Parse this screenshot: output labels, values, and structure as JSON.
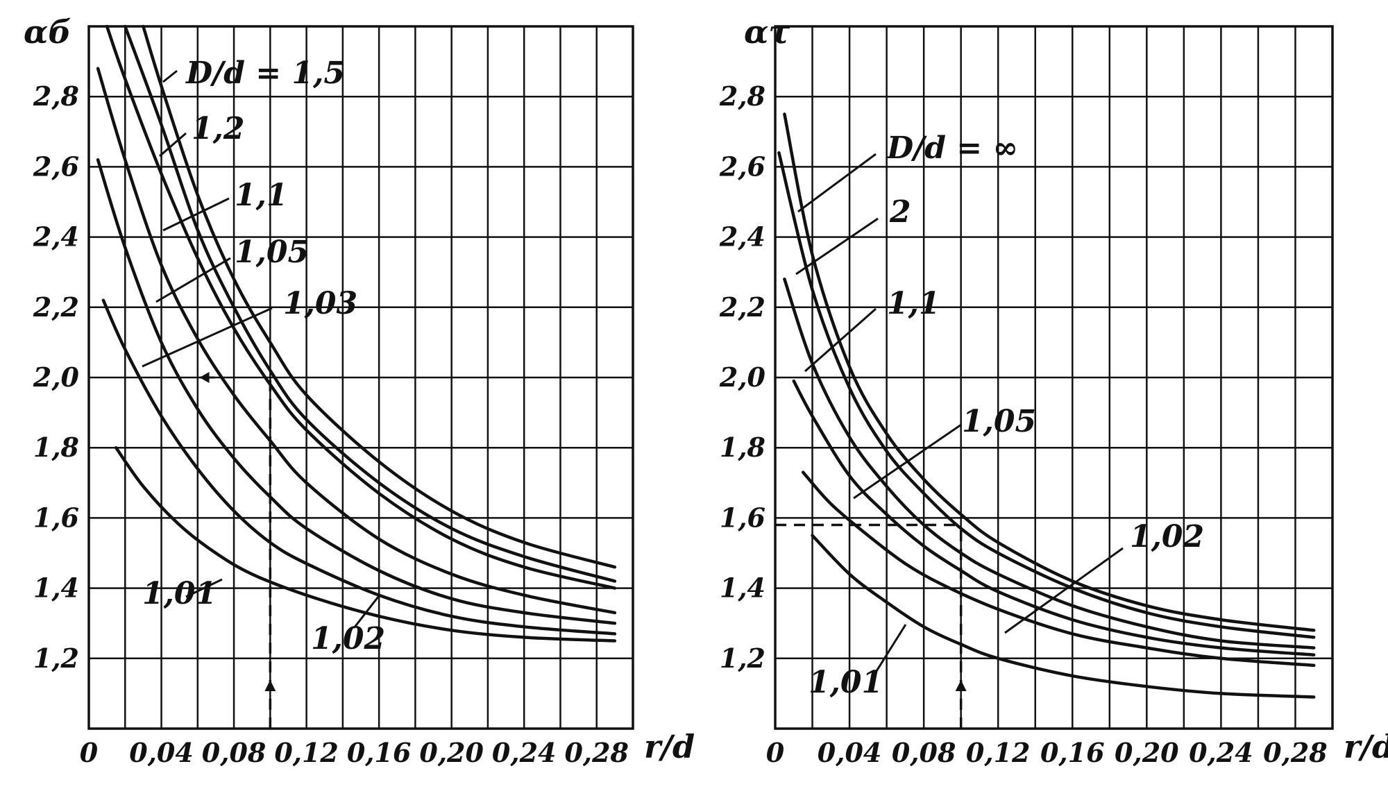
{
  "chart_data": [
    {
      "type": "line",
      "ylabel": "αб",
      "xlabel": "r/d",
      "xlim": [
        0,
        0.3
      ],
      "ylim": [
        1.0,
        3.0
      ],
      "x_ticks": [
        "0",
        "0,04",
        "0,08",
        "0,12",
        "0,16",
        "0,20",
        "0,24",
        "0,28"
      ],
      "y_ticks": [
        "1,2",
        "1,4",
        "1,6",
        "1,8",
        "2,0",
        "2,2",
        "2,4",
        "2,6",
        "2,8"
      ],
      "grid": true,
      "series": [
        {
          "name": "D/d = 1,5",
          "label": "D/d = 1,5",
          "x": [
            0.03,
            0.04,
            0.06,
            0.08,
            0.1,
            0.12,
            0.16,
            0.2,
            0.24,
            0.29
          ],
          "y": [
            3.0,
            2.83,
            2.52,
            2.28,
            2.1,
            1.95,
            1.76,
            1.62,
            1.53,
            1.46
          ]
        },
        {
          "name": "1,2",
          "label": "1,2",
          "x": [
            0.02,
            0.04,
            0.06,
            0.08,
            0.1,
            0.12,
            0.16,
            0.2,
            0.24,
            0.29
          ],
          "y": [
            3.0,
            2.72,
            2.42,
            2.2,
            2.02,
            1.88,
            1.7,
            1.57,
            1.49,
            1.42
          ]
        },
        {
          "name": "1,1",
          "label": "1,1",
          "x": [
            0.01,
            0.02,
            0.04,
            0.06,
            0.08,
            0.1,
            0.12,
            0.16,
            0.2,
            0.24,
            0.29
          ],
          "y": [
            3.0,
            2.85,
            2.58,
            2.34,
            2.14,
            1.98,
            1.85,
            1.67,
            1.54,
            1.46,
            1.4
          ]
        },
        {
          "name": "1,05",
          "label": "1,05",
          "x": [
            0.005,
            0.02,
            0.04,
            0.06,
            0.08,
            0.1,
            0.12,
            0.16,
            0.2,
            0.24,
            0.29
          ],
          "y": [
            2.88,
            2.62,
            2.32,
            2.11,
            1.95,
            1.82,
            1.7,
            1.54,
            1.44,
            1.38,
            1.33
          ]
        },
        {
          "name": "1,03",
          "label": "1,03",
          "x": [
            0.005,
            0.02,
            0.04,
            0.06,
            0.08,
            0.1,
            0.12,
            0.16,
            0.2,
            0.24,
            0.29
          ],
          "y": [
            2.62,
            2.37,
            2.1,
            1.91,
            1.77,
            1.66,
            1.57,
            1.45,
            1.37,
            1.33,
            1.3
          ]
        },
        {
          "name": "1,02",
          "label": "1,02",
          "x": [
            0.008,
            0.02,
            0.04,
            0.06,
            0.08,
            0.1,
            0.12,
            0.16,
            0.2,
            0.24,
            0.29
          ],
          "y": [
            2.22,
            2.08,
            1.89,
            1.74,
            1.62,
            1.53,
            1.47,
            1.38,
            1.32,
            1.29,
            1.27
          ]
        },
        {
          "name": "1,01",
          "label": "1,01",
          "x": [
            0.015,
            0.03,
            0.05,
            0.07,
            0.09,
            0.12,
            0.16,
            0.2,
            0.24,
            0.29
          ],
          "y": [
            1.8,
            1.69,
            1.58,
            1.5,
            1.44,
            1.38,
            1.32,
            1.28,
            1.26,
            1.25
          ]
        }
      ],
      "annotations": [
        {
          "type": "dashed-vertical",
          "x": 0.1,
          "y_from": 1.0,
          "y_to": 2.0
        },
        {
          "type": "arrow-left",
          "x": 0.04,
          "y": 2.0
        }
      ]
    },
    {
      "type": "line",
      "ylabel": "ατ",
      "xlabel": "r/d",
      "xlim": [
        0,
        0.3
      ],
      "ylim": [
        1.0,
        3.0
      ],
      "x_ticks": [
        "0",
        "0,04",
        "0,08",
        "0,12",
        "0,16",
        "0,20",
        "0,24",
        "0,28"
      ],
      "y_ticks": [
        "1,2",
        "1,4",
        "1,6",
        "1,8",
        "2,0",
        "2,2",
        "2,4",
        "2,6",
        "2,8"
      ],
      "grid": true,
      "series": [
        {
          "name": "D/d = ∞",
          "label": "D/d = ∞",
          "x": [
            0.005,
            0.02,
            0.04,
            0.06,
            0.08,
            0.1,
            0.12,
            0.16,
            0.2,
            0.24,
            0.29
          ],
          "y": [
            2.75,
            2.35,
            2.03,
            1.84,
            1.71,
            1.61,
            1.53,
            1.42,
            1.35,
            1.31,
            1.28
          ]
        },
        {
          "name": "2",
          "label": "2",
          "x": [
            0.002,
            0.02,
            0.04,
            0.06,
            0.08,
            0.1,
            0.12,
            0.16,
            0.2,
            0.24,
            0.29
          ],
          "y": [
            2.64,
            2.25,
            1.97,
            1.79,
            1.67,
            1.57,
            1.5,
            1.4,
            1.33,
            1.29,
            1.26
          ]
        },
        {
          "name": "1,1",
          "label": "1,1",
          "x": [
            0.005,
            0.02,
            0.04,
            0.06,
            0.08,
            0.1,
            0.12,
            0.16,
            0.2,
            0.24,
            0.29
          ],
          "y": [
            2.28,
            2.04,
            1.83,
            1.69,
            1.58,
            1.5,
            1.44,
            1.35,
            1.29,
            1.25,
            1.23
          ]
        },
        {
          "name": "1,05",
          "label": "1,05",
          "x": [
            0.01,
            0.02,
            0.04,
            0.06,
            0.08,
            0.1,
            0.12,
            0.16,
            0.2,
            0.24,
            0.29
          ],
          "y": [
            1.99,
            1.89,
            1.72,
            1.61,
            1.52,
            1.45,
            1.39,
            1.31,
            1.26,
            1.23,
            1.21
          ]
        },
        {
          "name": "1,02",
          "label": "1,02",
          "x": [
            0.015,
            0.03,
            0.05,
            0.07,
            0.09,
            0.12,
            0.16,
            0.2,
            0.24,
            0.29
          ],
          "y": [
            1.73,
            1.64,
            1.55,
            1.47,
            1.41,
            1.34,
            1.27,
            1.23,
            1.2,
            1.18
          ]
        },
        {
          "name": "1,01",
          "label": "1,01",
          "x": [
            0.02,
            0.04,
            0.06,
            0.08,
            0.1,
            0.12,
            0.16,
            0.2,
            0.24,
            0.29
          ],
          "y": [
            1.55,
            1.44,
            1.36,
            1.29,
            1.24,
            1.2,
            1.15,
            1.12,
            1.1,
            1.09
          ]
        }
      ],
      "annotations": [
        {
          "type": "dashed-vertical",
          "x": 0.1,
          "y_from": 1.0,
          "y_to": 1.58
        },
        {
          "type": "dashed-horizontal",
          "y": 1.58,
          "x_from": 0.0,
          "x_to": 0.1
        }
      ]
    }
  ]
}
